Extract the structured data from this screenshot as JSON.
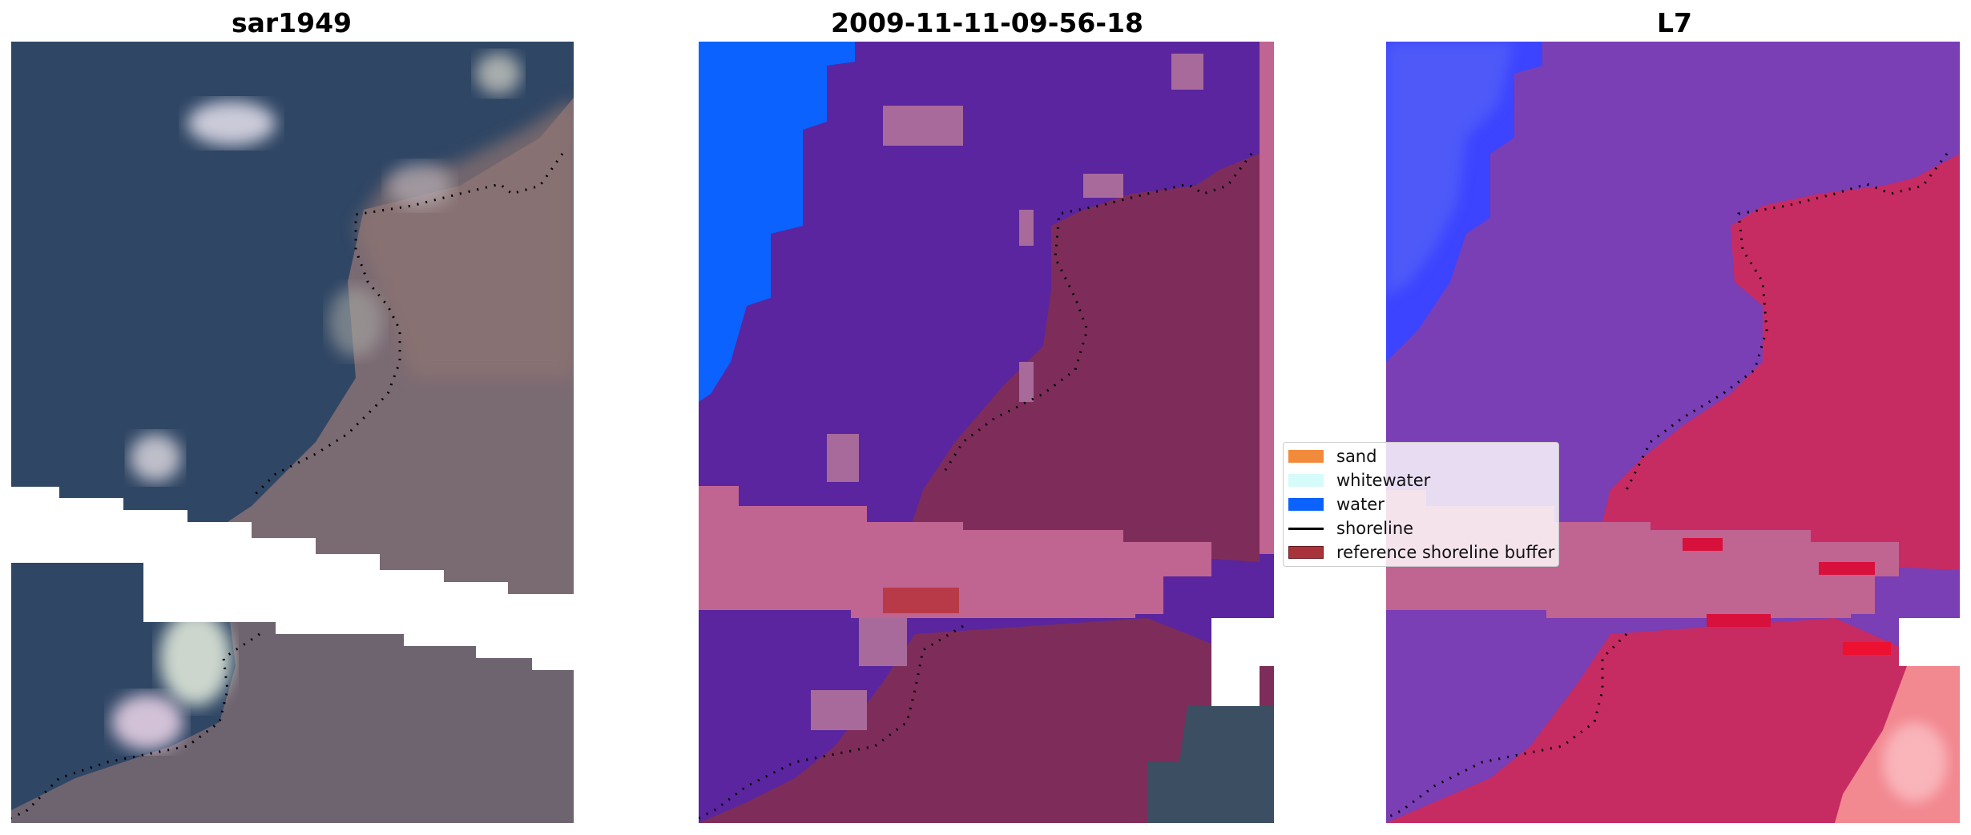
{
  "panels": [
    {
      "title": "sar1949"
    },
    {
      "title": "2009-11-11-09-56-18"
    },
    {
      "title": "L7"
    }
  ],
  "legend": {
    "items": [
      {
        "label": "sand",
        "color": "#f28a3c",
        "kind": "patch"
      },
      {
        "label": "whitewater",
        "color": "#d6fbfb",
        "kind": "patch"
      },
      {
        "label": "water",
        "color": "#0b62ff",
        "kind": "patch"
      },
      {
        "label": "shoreline",
        "color": "#000000",
        "kind": "line"
      },
      {
        "label": "reference shoreline buffer",
        "color": "#a8333a",
        "kind": "patch"
      }
    ]
  },
  "colors": {
    "sea_rgb": "#2f4664",
    "land_rgb": "#7a6a72",
    "class_other": "#5a259e",
    "class_water": "#0b62ff",
    "buffer": "#c06492",
    "land_overlay": "#7e2d5a",
    "l7_sea": "#7a3eb5",
    "l7_land": "#c62c62",
    "l7_water": "#3c44ff",
    "nodata": "#ffffff"
  }
}
